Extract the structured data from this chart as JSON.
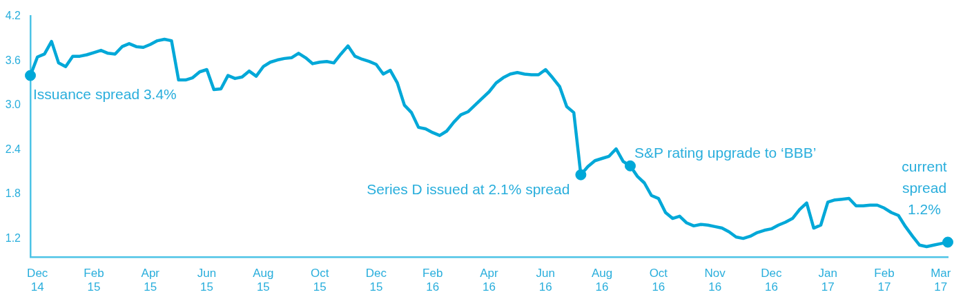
{
  "chart_data": {
    "type": "line",
    "ylim": [
      0.95,
      4.2
    ],
    "categories": [
      null,
      "Dec\n14",
      null,
      null,
      null,
      null,
      null,
      null,
      null,
      "Feb\n15",
      null,
      null,
      null,
      null,
      null,
      null,
      null,
      "Apr\n15",
      null,
      null,
      null,
      null,
      null,
      null,
      null,
      "Jun\n15",
      null,
      null,
      null,
      null,
      null,
      null,
      null,
      "Aug\n15",
      null,
      null,
      null,
      null,
      null,
      null,
      null,
      "Oct\n15",
      null,
      null,
      null,
      null,
      null,
      null,
      null,
      "Dec\n15",
      null,
      null,
      null,
      null,
      null,
      null,
      null,
      "Feb\n16",
      null,
      null,
      null,
      null,
      null,
      null,
      null,
      "Apr\n16",
      null,
      null,
      null,
      null,
      null,
      null,
      null,
      "Jun\n16",
      null,
      null,
      null,
      null,
      null,
      null,
      null,
      "Aug\n16",
      null,
      null,
      null,
      null,
      null,
      null,
      null,
      "Oct\n16",
      null,
      null,
      null,
      null,
      null,
      null,
      null,
      "Nov\n16",
      null,
      null,
      null,
      null,
      null,
      null,
      null,
      "Dec\n16",
      null,
      null,
      null,
      null,
      null,
      null,
      null,
      "Jan\n17",
      null,
      null,
      null,
      null,
      null,
      null,
      null,
      "Feb\n17",
      null,
      null,
      null,
      null,
      null,
      null,
      null,
      "Mar\n17",
      null
    ],
    "yticks": [
      1.2,
      1.8,
      2.4,
      {
        "value": 3,
        "label": "3.0"
      },
      3.6,
      4.2
    ],
    "grid": false,
    "legend": false,
    "marker": "none",
    "line_style": "solid",
    "series": [
      {
        "color": "#00a8d8",
        "values": [
          3.4,
          3.65,
          3.69,
          3.86,
          3.57,
          3.52,
          3.66,
          3.66,
          3.68,
          3.71,
          3.74,
          3.7,
          3.69,
          3.79,
          3.83,
          3.79,
          3.78,
          3.82,
          3.87,
          3.89,
          3.87,
          3.34,
          3.34,
          3.37,
          3.45,
          3.48,
          3.21,
          3.22,
          3.4,
          3.36,
          3.38,
          3.46,
          3.39,
          3.52,
          3.58,
          3.61,
          3.63,
          3.64,
          3.7,
          3.64,
          3.56,
          3.58,
          3.59,
          3.57,
          3.69,
          3.8,
          3.66,
          3.62,
          3.59,
          3.55,
          3.42,
          3.47,
          3.3,
          3.0,
          2.9,
          2.7,
          2.68,
          2.63,
          2.59,
          2.65,
          2.77,
          2.87,
          2.91,
          3.0,
          3.09,
          3.18,
          3.3,
          3.37,
          3.42,
          3.44,
          3.42,
          3.41,
          3.41,
          3.48,
          3.37,
          3.25,
          2.98,
          2.9,
          2.06,
          2.17,
          2.25,
          2.28,
          2.31,
          2.41,
          2.24,
          2.18,
          2.04,
          1.95,
          1.78,
          1.74,
          1.55,
          1.47,
          1.5,
          1.41,
          1.37,
          1.39,
          1.38,
          1.36,
          1.34,
          1.29,
          1.22,
          1.2,
          1.23,
          1.28,
          1.31,
          1.33,
          1.38,
          1.42,
          1.47,
          1.59,
          1.68,
          1.34,
          1.38,
          1.69,
          1.72,
          1.73,
          1.74,
          1.64,
          1.64,
          1.65,
          1.65,
          1.61,
          1.55,
          1.51,
          1.36,
          1.23,
          1.11,
          1.09,
          1.11,
          1.13,
          1.15
        ]
      },
      {
        "type": "scatter",
        "color": "#00a8d8",
        "marker": "circle",
        "values": [
          3.4,
          null,
          null,
          null,
          null,
          null,
          null,
          null,
          null,
          null,
          null,
          null,
          null,
          null,
          null,
          null,
          null,
          null,
          null,
          null,
          null,
          null,
          null,
          null,
          null,
          null,
          null,
          null,
          null,
          null,
          null,
          null,
          null,
          null,
          null,
          null,
          null,
          null,
          null,
          null,
          null,
          null,
          null,
          null,
          null,
          null,
          null,
          null,
          null,
          null,
          null,
          null,
          null,
          null,
          null,
          null,
          null,
          null,
          null,
          null,
          null,
          null,
          null,
          null,
          null,
          null,
          null,
          null,
          null,
          null,
          null,
          null,
          null,
          null,
          null,
          null,
          null,
          null,
          2.06,
          null,
          null,
          null,
          null,
          null,
          null,
          2.18,
          null,
          null,
          null,
          null,
          null,
          null,
          null,
          null,
          null,
          null,
          null,
          null,
          null,
          null,
          null,
          null,
          null,
          null,
          null,
          null,
          null,
          null,
          null,
          null,
          null,
          null,
          null,
          null,
          null,
          null,
          null,
          null,
          null,
          null,
          null,
          null,
          null,
          null,
          null,
          null,
          null,
          null,
          null,
          null,
          1.15
        ]
      }
    ],
    "annotations": [
      "Issuance spread 3.4%",
      "Series D issued at 2.1% spread",
      "S&P rating upgrade to ‘BBB’",
      "current\nspread\n1.2%"
    ]
  }
}
